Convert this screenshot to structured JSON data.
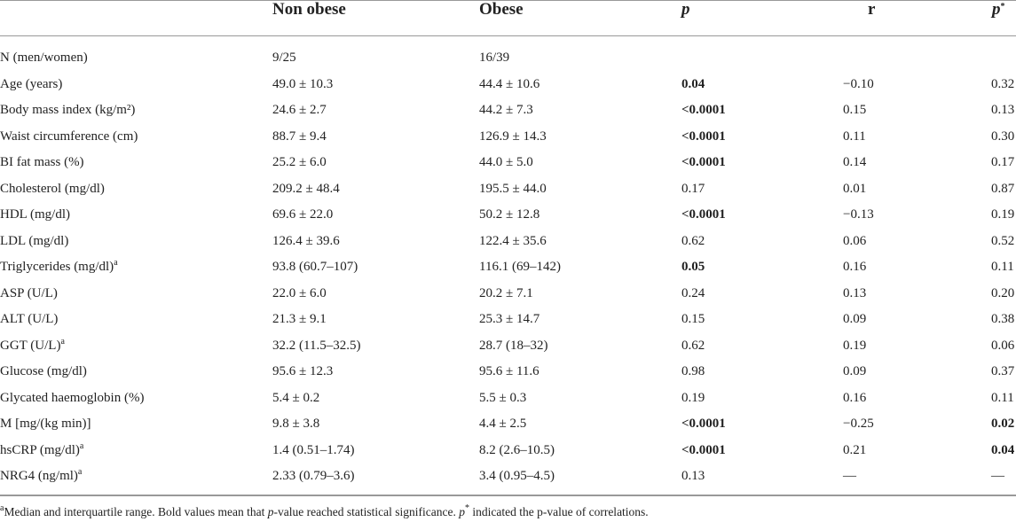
{
  "table": {
    "header": [
      {
        "text": "Non obese"
      },
      {
        "text": "Obese"
      },
      {
        "text": "p",
        "italic": true
      },
      {
        "text": "r"
      },
      {
        "text": "p",
        "italic": true,
        "sup": "*"
      }
    ],
    "rows": [
      {
        "label": "N (men/women)",
        "cells": [
          "9/25",
          "16/39",
          null,
          null,
          null
        ],
        "bold": []
      },
      {
        "label": "Age (years)",
        "cells": [
          "49.0 ± 10.3",
          "44.4 ± 10.6",
          "0.04",
          "−0.10",
          "0.32"
        ],
        "bold": [
          2
        ]
      },
      {
        "label": "Body mass index (kg/m²)",
        "cells": [
          "24.6 ± 2.7",
          "44.2 ± 7.3",
          "<0.0001",
          "0.15",
          "0.13"
        ],
        "bold": [
          2
        ]
      },
      {
        "label": "Waist circumference (cm)",
        "cells": [
          "88.7 ± 9.4",
          "126.9 ± 14.3",
          "<0.0001",
          "0.11",
          "0.30"
        ],
        "bold": [
          2
        ]
      },
      {
        "label": "BI fat mass (%)",
        "cells": [
          "25.2 ± 6.0",
          "44.0 ± 5.0",
          "<0.0001",
          "0.14",
          "0.17"
        ],
        "bold": [
          2
        ]
      },
      {
        "label": "Cholesterol (mg/dl)",
        "cells": [
          "209.2 ± 48.4",
          "195.5 ± 44.0",
          "0.17",
          "0.01",
          "0.87"
        ],
        "bold": []
      },
      {
        "label": "HDL (mg/dl)",
        "cells": [
          "69.6 ± 22.0",
          "50.2 ± 12.8",
          "<0.0001",
          "−0.13",
          "0.19"
        ],
        "bold": [
          2
        ]
      },
      {
        "label": "LDL (mg/dl)",
        "cells": [
          "126.4 ± 39.6",
          "122.4 ± 35.6",
          "0.62",
          "0.06",
          "0.52"
        ],
        "bold": []
      },
      {
        "label": "Triglycerides (mg/dl)",
        "note": "a",
        "cells": [
          "93.8 (60.7–107)",
          "116.1 (69–142)",
          "0.05",
          "0.16",
          "0.11"
        ],
        "bold": [
          2
        ]
      },
      {
        "label": "ASP (U/L)",
        "cells": [
          "22.0 ± 6.0",
          "20.2 ± 7.1",
          "0.24",
          "0.13",
          "0.20"
        ],
        "bold": []
      },
      {
        "label": "ALT (U/L)",
        "cells": [
          "21.3 ± 9.1",
          "25.3 ± 14.7",
          "0.15",
          "0.09",
          "0.38"
        ],
        "bold": []
      },
      {
        "label": "GGT (U/L)",
        "note": "a",
        "cells": [
          "32.2 (11.5–32.5)",
          "28.7 (18–32)",
          "0.62",
          "0.19",
          "0.06"
        ],
        "bold": []
      },
      {
        "label": "Glucose (mg/dl)",
        "cells": [
          "95.6 ± 12.3",
          "95.6 ± 11.6",
          "0.98",
          "0.09",
          "0.37"
        ],
        "bold": []
      },
      {
        "label": "Glycated haemoglobin (%)",
        "cells": [
          "5.4 ± 0.2",
          "5.5 ± 0.3",
          "0.19",
          "0.16",
          "0.11"
        ],
        "bold": []
      },
      {
        "label": "M [mg/(kg min)]",
        "cells": [
          "9.8 ± 3.8",
          "4.4 ± 2.5",
          "<0.0001",
          "−0.25",
          "0.02"
        ],
        "bold": [
          2,
          4
        ]
      },
      {
        "label": "hsCRP (mg/dl)",
        "note": "a",
        "cells": [
          "1.4 (0.51–1.74)",
          "8.2 (2.6–10.5)",
          "<0.0001",
          "0.21",
          "0.04"
        ],
        "bold": [
          2,
          4
        ]
      },
      {
        "label": "NRG4 (ng/ml)",
        "note": "a",
        "cells": [
          "2.33 (0.79–3.6)",
          "3.4 (0.95–4.5)",
          "0.13",
          "—",
          "—"
        ],
        "bold": []
      }
    ],
    "footnote": [
      {
        "text": "a",
        "sup": true
      },
      {
        "text": "Median and interquartile range. Bold values mean that "
      },
      {
        "text": "p",
        "italic": true
      },
      {
        "text": "-value reached statistical significance. "
      },
      {
        "text": "p",
        "italic": true
      },
      {
        "text": "*",
        "sup": true
      },
      {
        "text": " indicated the p-value of correlations."
      }
    ]
  }
}
